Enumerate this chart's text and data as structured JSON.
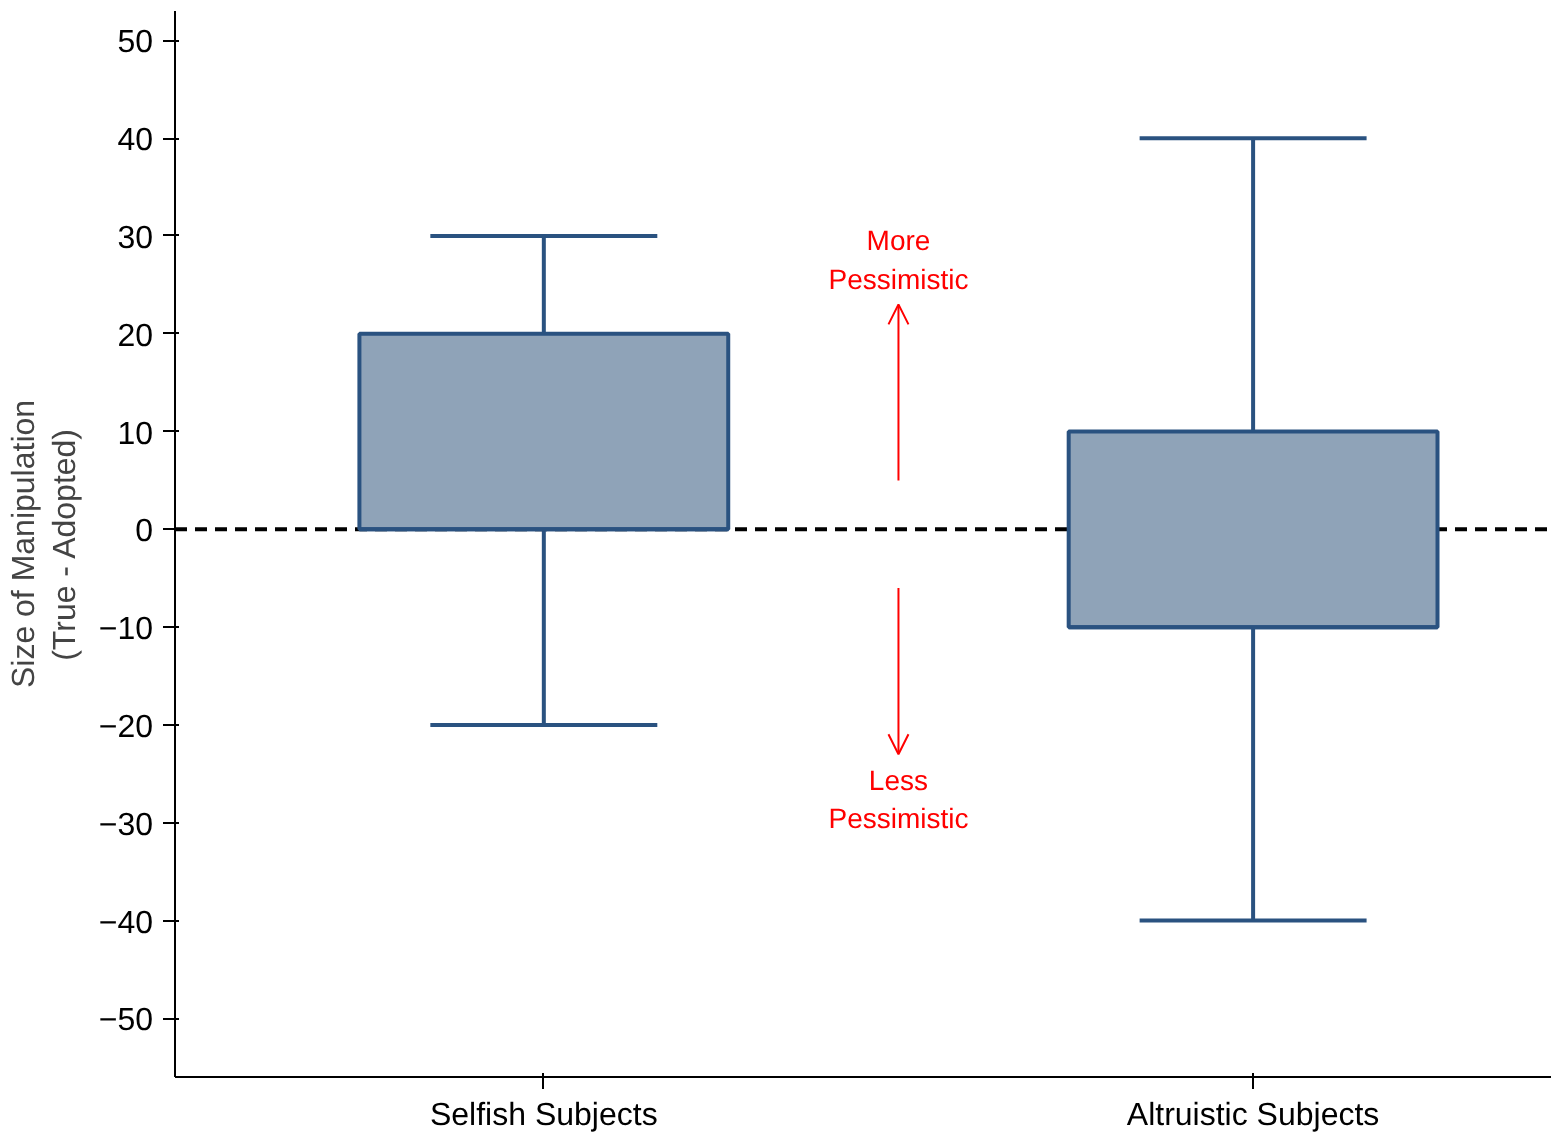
{
  "chart_data": {
    "type": "box",
    "ylabel": "Size of Manipulation\n(True - Adopted)",
    "categories": [
      "Selfish Subjects",
      "Altruistic Subjects"
    ],
    "series": [
      {
        "color": "#8fa3b8",
        "boxes": [
          {
            "low": -20,
            "q1": 0,
            "median": 0,
            "q3": 20,
            "high": 30
          },
          {
            "low": -40,
            "q1": -10,
            "median": -10,
            "q3": 10,
            "high": 40
          }
        ]
      }
    ],
    "ylim": [
      -56,
      53
    ],
    "yticks": [
      -50,
      -40,
      -30,
      -20,
      -10,
      0,
      10,
      20,
      30,
      40,
      50
    ],
    "grid": false,
    "ref_lines": [
      {
        "axis": "y",
        "value": 0,
        "color": "#000000",
        "line_style": "dashed"
      }
    ],
    "annotations": [
      "More Pessimistic",
      "Less Pessimistic"
    ]
  }
}
